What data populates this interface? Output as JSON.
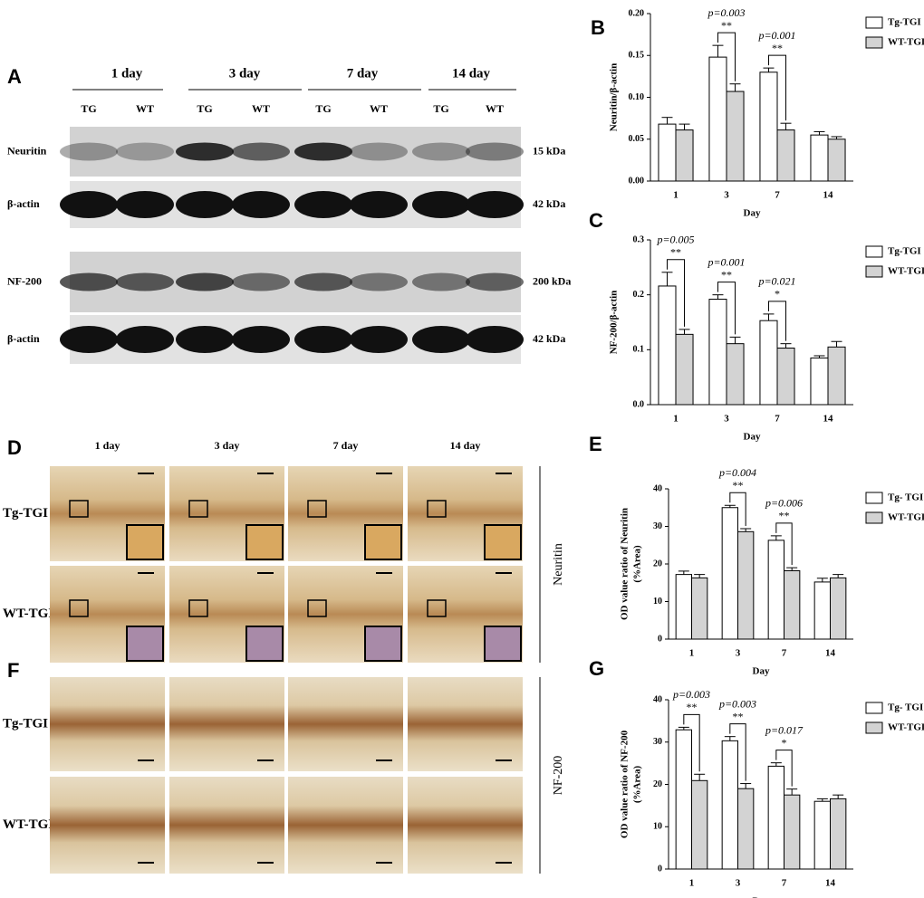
{
  "blot": {
    "panel": "A",
    "days": [
      "1 day",
      "3 day",
      "7 day",
      "14 day"
    ],
    "lanes": [
      "TG",
      "WT"
    ],
    "rows": [
      {
        "label": "Neuritin",
        "size": "15 kDa"
      },
      {
        "label": "β-actin",
        "size": "42 kDa"
      },
      {
        "label": "NF-200",
        "size": "200 kDa"
      },
      {
        "label": "β-actin",
        "size": "42 kDa"
      }
    ]
  },
  "ihc": [
    {
      "panel": "D",
      "days": [
        "1 day",
        "3 day",
        "7 day",
        "14 day"
      ],
      "rows": [
        "Tg-TGI",
        "WT-TGI"
      ],
      "marker": "Neuritin"
    },
    {
      "panel": "F",
      "rows": [
        "Tg-TGI",
        "WT-TGI"
      ],
      "marker": "NF-200"
    }
  ],
  "chart_data": [
    {
      "type": "bar",
      "panel": "B",
      "ylabel": [
        "Neuritin/β-actin"
      ],
      "xlabel": "Day",
      "categories": [
        "1",
        "3",
        "7",
        "14"
      ],
      "ylim": [
        0,
        0.2
      ],
      "yticks": [
        {
          "value": 0,
          "label": "0.00"
        },
        0.05,
        {
          "value": 0.1,
          "label": "0.10"
        },
        0.15,
        {
          "value": 0.2,
          "label": "0.20"
        }
      ],
      "series": [
        {
          "name": "Tg-TGI",
          "color": "#ffffff",
          "values": [
            0.068,
            0.148,
            0.13,
            0.055
          ],
          "errors": [
            0.008,
            0.014,
            0.005,
            0.004
          ]
        },
        {
          "name": "WT-TGI",
          "color": "#d3d3d3",
          "values": [
            0.061,
            0.107,
            0.061,
            0.05
          ],
          "errors": [
            0.007,
            0.009,
            0.008,
            0.003
          ]
        }
      ],
      "annotations": [
        {
          "p": "p=0.003",
          "sig": "**"
        },
        {
          "p": "p=0.001",
          "sig": "**"
        }
      ]
    },
    {
      "type": "bar",
      "panel": "C",
      "ylabel": [
        "NF-200/β-actin"
      ],
      "xlabel": "Day",
      "categories": [
        "1",
        "3",
        "7",
        "14"
      ],
      "ylim": [
        0,
        0.3
      ],
      "yticks": [
        {
          "value": 0,
          "label": "0.0"
        },
        0.1,
        0.2,
        0.3
      ],
      "series": [
        {
          "name": "Tg-TGI",
          "color": "#ffffff",
          "values": [
            0.216,
            0.192,
            0.153,
            0.085
          ],
          "errors": [
            0.025,
            0.008,
            0.012,
            0.004
          ]
        },
        {
          "name": "WT-TGI",
          "color": "#d3d3d3",
          "values": [
            0.128,
            0.111,
            0.103,
            0.105
          ],
          "errors": [
            0.009,
            0.012,
            0.008,
            0.01
          ]
        }
      ],
      "annotations": [
        {
          "p": "p=0.005",
          "sig": "**"
        },
        {
          "p": "p=0.001",
          "sig": "**"
        },
        {
          "p": "p=0.021",
          "sig": "*"
        }
      ]
    },
    {
      "type": "bar",
      "panel": "E",
      "ylabel": [
        "OD value ratio of Neuritin",
        "(%Area)"
      ],
      "xlabel": "Day",
      "categories": [
        "1",
        "3",
        "7",
        "14"
      ],
      "ylim": [
        0,
        40
      ],
      "yticks": [
        0,
        10,
        20,
        30,
        40
      ],
      "series": [
        {
          "name": "Tg- TGI",
          "color": "#ffffff",
          "values": [
            17.2,
            35,
            26.3,
            15.2
          ],
          "errors": [
            0.9,
            0.6,
            1.2,
            1
          ]
        },
        {
          "name": "WT-TGI",
          "color": "#d3d3d3",
          "values": [
            16.3,
            28.6,
            18.2,
            16.3
          ],
          "errors": [
            0.9,
            0.8,
            0.8,
            0.9
          ]
        }
      ],
      "annotations": [
        {
          "p": "p=0.004",
          "sig": "**"
        },
        {
          "p": "p=0.006",
          "sig": "**"
        }
      ]
    },
    {
      "type": "bar",
      "panel": "G",
      "ylabel": [
        "OD value ratio of NF-200",
        "(%Area)"
      ],
      "xlabel": "Day",
      "categories": [
        "1",
        "3",
        "7",
        "14"
      ],
      "ylim": [
        0,
        40
      ],
      "yticks": [
        0,
        10,
        20,
        30,
        40
      ],
      "series": [
        {
          "name": "Tg- TGI",
          "color": "#ffffff",
          "values": [
            32.9,
            30.3,
            24.3,
            16
          ],
          "errors": [
            0.6,
            1,
            0.8,
            0.6
          ]
        },
        {
          "name": "WT-TGI",
          "color": "#d3d3d3",
          "values": [
            20.9,
            19,
            17.5,
            16.6
          ],
          "errors": [
            1.5,
            1.2,
            1.4,
            0.9
          ]
        }
      ],
      "annotations": [
        {
          "p": "p=0.003",
          "sig": "**"
        },
        {
          "p": "p=0.003",
          "sig": "**"
        },
        {
          "p": "p=0.017",
          "sig": "*"
        }
      ]
    }
  ]
}
